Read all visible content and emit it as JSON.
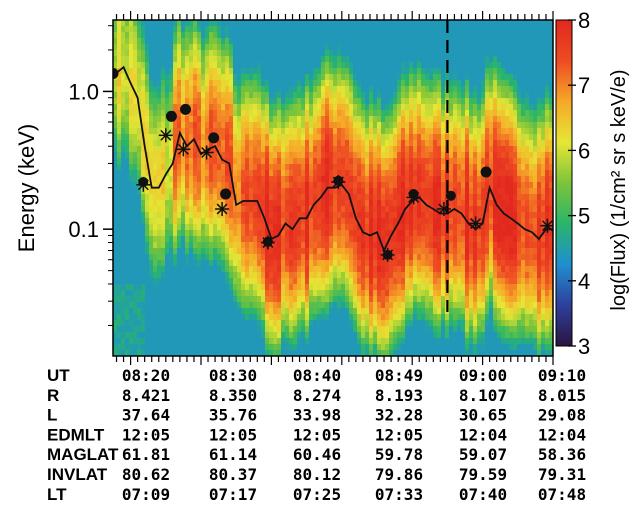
{
  "chart_data": {
    "type": "heatmap",
    "ylabel": "Energy (keV)",
    "y_scale": "log",
    "y_ticks": [
      {
        "value": 1.0,
        "label": "1.0"
      },
      {
        "value": 0.1,
        "label": "0.1"
      }
    ],
    "ylim": [
      0.012,
      3.3
    ],
    "colorbar": {
      "label": "log(Flux) (1/cm² sr s keV/e)",
      "range": [
        3,
        8
      ],
      "ticks": [
        "3",
        "4",
        "5",
        "6",
        "7",
        "8"
      ],
      "colors": [
        "#2a1440",
        "#2e3f9c",
        "#1f8fd0",
        "#29b56a",
        "#7cc43a",
        "#e6e635",
        "#f6a828",
        "#ee4b23",
        "#e3281f"
      ]
    },
    "x_ticks": [
      "08:20",
      "08:30",
      "08:40",
      "08:49",
      "09:00",
      "09:10"
    ],
    "x_range_minutes": [
      7.5,
      70
    ],
    "dashed_line_x": 55,
    "ephemeris": {
      "labels": [
        "UT",
        "R",
        "L",
        "EDMLT",
        "MAGLAT",
        "INVLAT",
        "LT"
      ],
      "rows": [
        [
          "08:20",
          "08:30",
          "08:40",
          "08:49",
          "09:00",
          "09:10"
        ],
        [
          "8.421",
          "8.350",
          "8.274",
          "8.193",
          "8.107",
          "8.015"
        ],
        [
          "37.64",
          "35.76",
          "33.98",
          "32.28",
          "30.65",
          "29.08"
        ],
        [
          "12:05",
          "12:05",
          "12:05",
          "12:05",
          "12:04",
          "12:04"
        ],
        [
          "61.81",
          "61.14",
          "60.46",
          "59.78",
          "59.07",
          "58.36"
        ],
        [
          "80.62",
          "80.37",
          "80.12",
          "79.86",
          "79.59",
          "79.31"
        ],
        [
          "07:09",
          "07:17",
          "07:25",
          "07:33",
          "07:40",
          "07:48"
        ]
      ]
    },
    "peak_energy_trace": {
      "x": [
        7.5,
        9,
        10,
        11,
        12,
        13,
        14,
        15,
        16,
        17,
        18,
        19,
        20,
        21,
        22,
        23,
        24,
        25,
        26,
        27,
        28,
        29,
        30,
        31,
        32,
        33,
        34,
        35,
        36,
        37,
        38,
        39,
        40,
        41,
        42,
        43,
        44,
        45,
        46,
        47,
        48,
        49,
        50,
        51,
        52,
        53,
        54,
        55,
        56,
        57,
        58,
        59,
        60,
        61,
        62,
        63,
        64,
        65,
        66,
        67,
        68,
        69,
        70
      ],
      "y": [
        1.3,
        1.5,
        1.15,
        0.9,
        0.4,
        0.2,
        0.2,
        0.25,
        0.3,
        0.5,
        0.4,
        0.45,
        0.35,
        0.38,
        0.4,
        0.32,
        0.3,
        0.15,
        0.16,
        0.16,
        0.16,
        0.12,
        0.085,
        0.09,
        0.11,
        0.1,
        0.12,
        0.12,
        0.15,
        0.17,
        0.2,
        0.2,
        0.21,
        0.18,
        0.12,
        0.095,
        0.09,
        0.095,
        0.07,
        0.09,
        0.11,
        0.14,
        0.16,
        0.17,
        0.15,
        0.14,
        0.13,
        0.13,
        0.14,
        0.13,
        0.11,
        0.1,
        0.11,
        0.2,
        0.15,
        0.13,
        0.12,
        0.11,
        0.1,
        0.095,
        0.085,
        0.1,
        0.1
      ]
    },
    "markers_dot": [
      {
        "x": 7.5,
        "y": 1.35
      },
      {
        "x": 15.8,
        "y": 0.66
      },
      {
        "x": 17.8,
        "y": 0.74
      },
      {
        "x": 21.8,
        "y": 0.46
      },
      {
        "x": 23.5,
        "y": 0.18
      },
      {
        "x": 60.5,
        "y": 0.26
      }
    ],
    "markers_dot_star": [
      {
        "x": 11.8,
        "y": 0.22
      },
      {
        "x": 29.5,
        "y": 0.081
      },
      {
        "x": 39.5,
        "y": 0.225
      },
      {
        "x": 46.5,
        "y": 0.065
      },
      {
        "x": 50.2,
        "y": 0.18
      }
    ],
    "markers_star": [
      {
        "x": 11.8,
        "y": 0.21
      },
      {
        "x": 15.0,
        "y": 0.48
      },
      {
        "x": 17.5,
        "y": 0.38
      },
      {
        "x": 20.8,
        "y": 0.36
      },
      {
        "x": 23.0,
        "y": 0.14
      },
      {
        "x": 29.5,
        "y": 0.08
      },
      {
        "x": 39.5,
        "y": 0.22
      },
      {
        "x": 46.5,
        "y": 0.065
      },
      {
        "x": 50.2,
        "y": 0.17
      },
      {
        "x": 54.5,
        "y": 0.14
      },
      {
        "x": 59.0,
        "y": 0.11
      },
      {
        "x": 69.2,
        "y": 0.106
      }
    ],
    "dot_on_dashed": {
      "x": 55.5,
      "y": 0.175
    }
  }
}
